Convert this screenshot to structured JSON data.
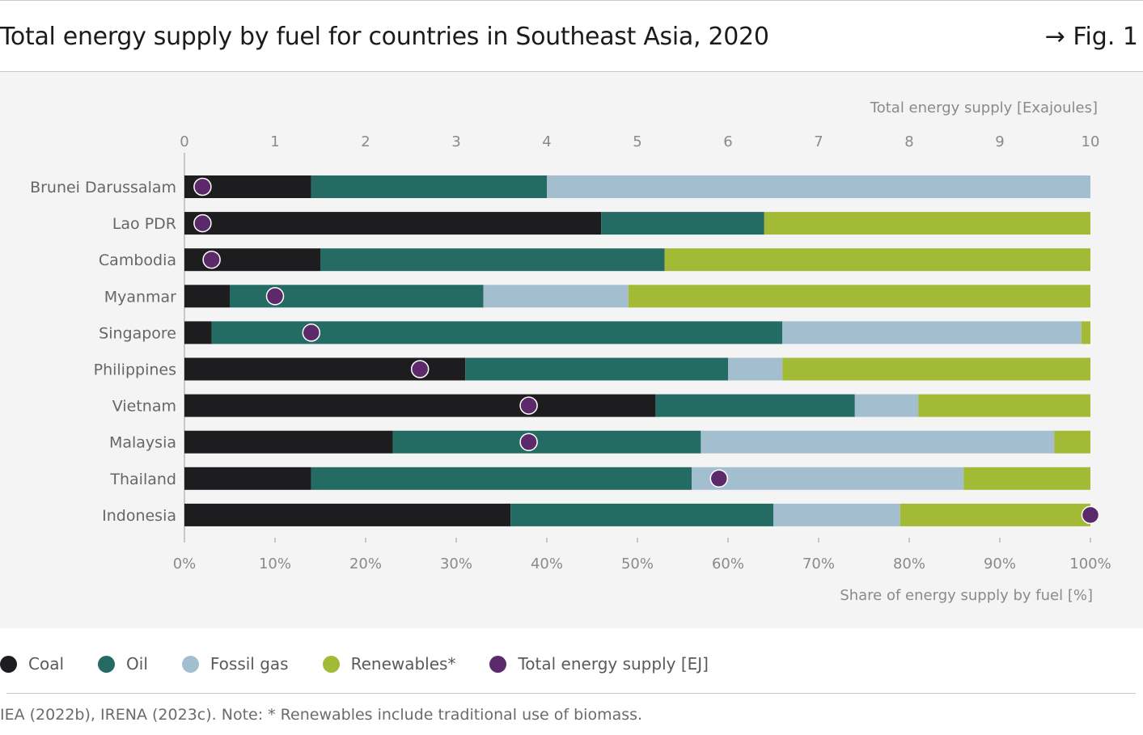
{
  "header": {
    "title": "Total energy supply by fuel for countries in Southeast Asia, 2020",
    "fig_label": "→ Fig. 1"
  },
  "colors": {
    "coal": "#1d1d1f",
    "oil": "#246b63",
    "fossil_gas": "#a3bfcf",
    "renewables": "#a2ba36",
    "total": "#5c2a6b",
    "panel_bg": "#f4f4f4"
  },
  "legend": [
    {
      "label": "Coal",
      "color": "#1d1d1f"
    },
    {
      "label": "Oil",
      "color": "#246b63"
    },
    {
      "label": "Fossil gas",
      "color": "#a3bfcf"
    },
    {
      "label": "Renewables*",
      "color": "#a2ba36"
    },
    {
      "label": "Total energy supply [EJ]",
      "color": "#5c2a6b"
    }
  ],
  "chart_data": {
    "type": "bar",
    "orientation": "horizontal-stacked-percent",
    "categories": [
      "Brunei Darussalam",
      "Lao PDR",
      "Cambodia",
      "Myanmar",
      "Singapore",
      "Philippines",
      "Vietnam",
      "Malaysia",
      "Thailand",
      "Indonesia"
    ],
    "series": [
      {
        "name": "Coal",
        "values": [
          14,
          46,
          15,
          5,
          3,
          31,
          52,
          23,
          14,
          36
        ]
      },
      {
        "name": "Oil",
        "values": [
          26,
          18,
          38,
          28,
          63,
          29,
          22,
          34,
          42,
          29
        ]
      },
      {
        "name": "Fossil gas",
        "values": [
          60,
          0,
          0,
          16,
          33,
          6,
          7,
          39,
          30,
          14
        ]
      },
      {
        "name": "Renewables*",
        "values": [
          0,
          36,
          47,
          51,
          1,
          34,
          19,
          4,
          14,
          21
        ]
      }
    ],
    "total_energy_supply_ej": [
      0.2,
      0.2,
      0.3,
      1.0,
      1.4,
      2.6,
      3.8,
      3.8,
      5.9,
      10.0
    ],
    "xlabel_bottom": "Share of energy supply by fuel [%]",
    "xlabel_top": "Total energy supply [Exajoules]",
    "bottom_ticks": [
      "0%",
      "10%",
      "20%",
      "30%",
      "40%",
      "50%",
      "60%",
      "70%",
      "80%",
      "90%",
      "100%"
    ],
    "top_ticks": [
      "0",
      "1",
      "2",
      "3",
      "4",
      "5",
      "6",
      "7",
      "8",
      "9",
      "10"
    ],
    "xlim_bottom": [
      0,
      100
    ],
    "xlim_top": [
      0,
      10
    ]
  },
  "footer": {
    "note": "IEA (2022b), IRENA (2023c). Note: * Renewables include traditional use of biomass."
  }
}
